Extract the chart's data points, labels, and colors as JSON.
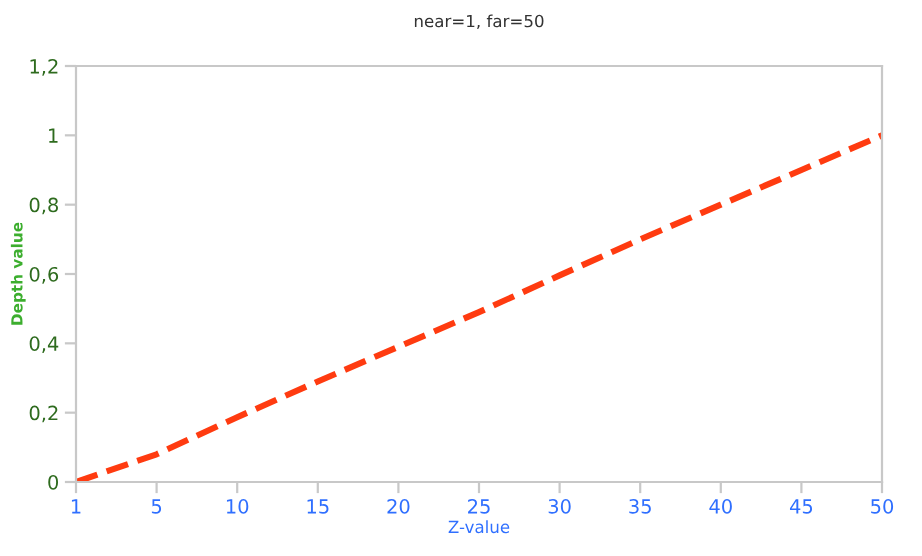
{
  "chart_data": {
    "type": "line",
    "title": "near=1, far=50",
    "xlabel": "Z-value",
    "ylabel": "Depth value",
    "categories": [
      "1",
      "5",
      "10",
      "15",
      "20",
      "25",
      "30",
      "35",
      "40",
      "45",
      "50"
    ],
    "series": [
      {
        "color": "#ff3b10",
        "values": [
          0,
          0.08,
          0.187,
          0.29,
          0.39,
          0.49,
          0.596,
          0.7,
          0.8,
          0.9,
          1.0
        ]
      }
    ],
    "ylim": [
      0,
      1.2
    ],
    "yticks": [
      0,
      {
        "value": 0.2,
        "label": "0,2"
      },
      {
        "value": 0.4,
        "label": "0,4"
      },
      {
        "value": 0.6,
        "label": "0,6"
      },
      {
        "value": 0.8,
        "label": "0,8"
      },
      1,
      {
        "value": 1.2,
        "label": "1,2"
      }
    ],
    "line_style": "dashed",
    "marker": "none"
  }
}
